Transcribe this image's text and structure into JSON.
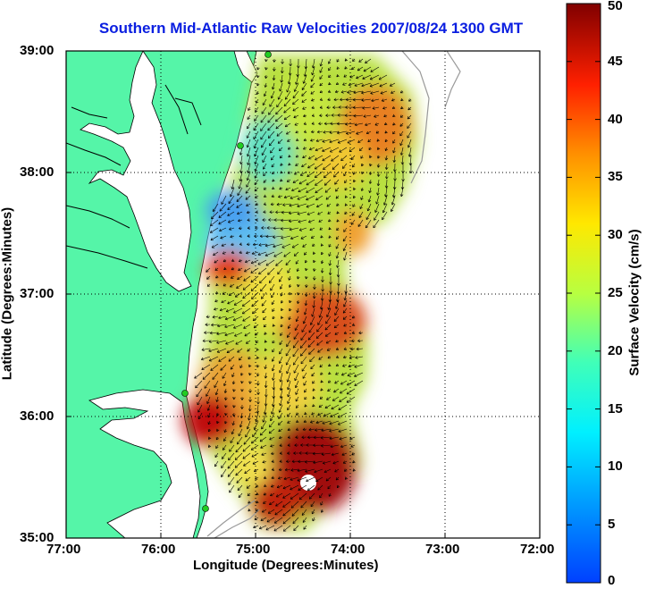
{
  "title": "Southern Mid-Atlantic Raw Velocities 2007/08/24 1300 GMT",
  "x_axis": {
    "label": "Longitude (Degrees:Minutes)",
    "ticks": [
      "77:00",
      "76:00",
      "75:00",
      "74:00",
      "73:00",
      "72:00"
    ]
  },
  "y_axis": {
    "label": "Latitude (Degrees:Minutes)",
    "ticks": [
      "39:00",
      "38:00",
      "37:00",
      "36:00",
      "35:00"
    ]
  },
  "colorbar": {
    "label": "Surface Velocity (cm/s)",
    "ticks": [
      "50",
      "45",
      "40",
      "35",
      "30",
      "25",
      "20",
      "15",
      "10",
      "5",
      "0"
    ],
    "range": [
      0,
      50
    ],
    "colormap": "jet"
  },
  "map": {
    "lon_range": [
      -77,
      -72
    ],
    "lat_range": [
      35,
      39
    ],
    "land_color": "#55f5a8",
    "coast_color": "#000000",
    "grid": "dotted",
    "station_color": "#22cc22"
  }
}
